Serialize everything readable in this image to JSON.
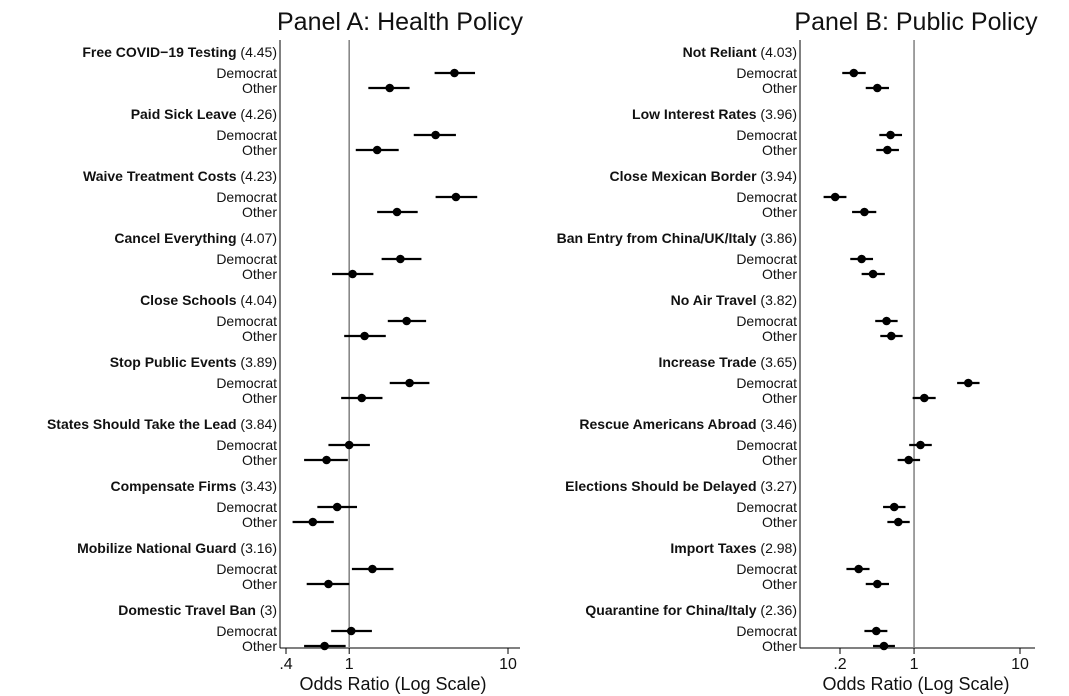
{
  "chart_data": [
    {
      "type": "forest",
      "title": "Panel A: Health Policy",
      "xlabel": "Odds Ratio (Log Scale)",
      "x_scale": "log",
      "x_ticks": [
        0.4,
        1,
        10
      ],
      "x_tick_labels": [
        ".4",
        "1",
        "10"
      ],
      "xlim": [
        0.37,
        12
      ],
      "reference_line": 1,
      "groups": [
        "Democrat",
        "Other"
      ],
      "items": [
        {
          "label": "Free COVID−19 Testing",
          "score": "(4.45)",
          "estimates": [
            {
              "group": "Democrat",
              "or": 4.6,
              "lo": 3.45,
              "hi": 6.2
            },
            {
              "group": "Other",
              "or": 1.8,
              "lo": 1.32,
              "hi": 2.4
            }
          ]
        },
        {
          "label": "Paid Sick Leave",
          "score": "(4.26)",
          "estimates": [
            {
              "group": "Democrat",
              "or": 3.5,
              "lo": 2.55,
              "hi": 4.7
            },
            {
              "group": "Other",
              "or": 1.5,
              "lo": 1.1,
              "hi": 2.05
            }
          ]
        },
        {
          "label": "Waive Treatment Costs",
          "score": "(4.23)",
          "estimates": [
            {
              "group": "Democrat",
              "or": 4.7,
              "lo": 3.5,
              "hi": 6.4
            },
            {
              "group": "Other",
              "or": 2.0,
              "lo": 1.5,
              "hi": 2.7
            }
          ]
        },
        {
          "label": "Cancel Everything",
          "score": "(4.07)",
          "estimates": [
            {
              "group": "Democrat",
              "or": 2.1,
              "lo": 1.6,
              "hi": 2.85
            },
            {
              "group": "Other",
              "or": 1.05,
              "lo": 0.78,
              "hi": 1.42
            }
          ]
        },
        {
          "label": "Close Schools",
          "score": " (4.04)",
          "estimates": [
            {
              "group": "Democrat",
              "or": 2.3,
              "lo": 1.75,
              "hi": 3.05
            },
            {
              "group": "Other",
              "or": 1.25,
              "lo": 0.93,
              "hi": 1.7
            }
          ]
        },
        {
          "label": "Stop Public Events",
          "score": "(3.89)",
          "estimates": [
            {
              "group": "Democrat",
              "or": 2.4,
              "lo": 1.8,
              "hi": 3.2
            },
            {
              "group": "Other",
              "or": 1.2,
              "lo": 0.89,
              "hi": 1.62
            }
          ]
        },
        {
          "label": "States Should Take the Lead",
          "score": "(3.84)",
          "estimates": [
            {
              "group": "Democrat",
              "or": 1.0,
              "lo": 0.74,
              "hi": 1.35
            },
            {
              "group": "Other",
              "or": 0.72,
              "lo": 0.52,
              "hi": 0.98
            }
          ]
        },
        {
          "label": "Compensate Firms",
          "score": "(3.43)",
          "estimates": [
            {
              "group": "Democrat",
              "or": 0.84,
              "lo": 0.63,
              "hi": 1.12
            },
            {
              "group": "Other",
              "or": 0.59,
              "lo": 0.44,
              "hi": 0.8
            }
          ]
        },
        {
          "label": "Mobilize National Guard",
          "score": "(3.16)",
          "estimates": [
            {
              "group": "Democrat",
              "or": 1.4,
              "lo": 1.04,
              "hi": 1.9
            },
            {
              "group": "Other",
              "or": 0.74,
              "lo": 0.54,
              "hi": 1.0
            }
          ]
        },
        {
          "label": "Domestic Travel Ban",
          "score": "(3)",
          "estimates": [
            {
              "group": "Democrat",
              "or": 1.03,
              "lo": 0.77,
              "hi": 1.39
            },
            {
              "group": "Other",
              "or": 0.7,
              "lo": 0.52,
              "hi": 0.95
            }
          ]
        }
      ]
    },
    {
      "type": "forest",
      "title": "Panel B: Public Policy",
      "xlabel": "Odds Ratio (Log Scale)",
      "x_scale": "log",
      "x_ticks": [
        0.2,
        1,
        10
      ],
      "x_tick_labels": [
        ".2",
        "1",
        "10"
      ],
      "xlim": [
        0.095,
        12
      ],
      "reference_line": 1,
      "groups": [
        "Democrat",
        "Other"
      ],
      "items": [
        {
          "label": "Not Reliant",
          "score": "(4.03)",
          "estimates": [
            {
              "group": "Democrat",
              "or": 0.27,
              "lo": 0.21,
              "hi": 0.35
            },
            {
              "group": "Other",
              "or": 0.45,
              "lo": 0.35,
              "hi": 0.58
            }
          ]
        },
        {
          "label": "Low Interest Rates",
          "score": "(3.96)",
          "estimates": [
            {
              "group": "Democrat",
              "or": 0.6,
              "lo": 0.47,
              "hi": 0.77
            },
            {
              "group": "Other",
              "or": 0.56,
              "lo": 0.44,
              "hi": 0.72
            }
          ]
        },
        {
          "label": "Close Mexican Border",
          "score": "(3.94)",
          "estimates": [
            {
              "group": "Democrat",
              "or": 0.18,
              "lo": 0.14,
              "hi": 0.23
            },
            {
              "group": "Other",
              "or": 0.34,
              "lo": 0.26,
              "hi": 0.44
            }
          ]
        },
        {
          "label": "Ban Entry from China/UK/Italy",
          "score": "(3.86)",
          "estimates": [
            {
              "group": "Democrat",
              "or": 0.32,
              "lo": 0.25,
              "hi": 0.41
            },
            {
              "group": "Other",
              "or": 0.41,
              "lo": 0.32,
              "hi": 0.53
            }
          ]
        },
        {
          "label": "No Air Travel",
          "score": "(3.82)",
          "estimates": [
            {
              "group": "Democrat",
              "or": 0.55,
              "lo": 0.43,
              "hi": 0.7
            },
            {
              "group": "Other",
              "or": 0.61,
              "lo": 0.48,
              "hi": 0.78
            }
          ]
        },
        {
          "label": "Increase Trade",
          "score": "(3.65)",
          "estimates": [
            {
              "group": "Democrat",
              "or": 3.25,
              "lo": 2.55,
              "hi": 4.15
            },
            {
              "group": "Other",
              "or": 1.25,
              "lo": 0.97,
              "hi": 1.6
            }
          ]
        },
        {
          "label": "Rescue Americans Abroad",
          "score": "(3.46)",
          "estimates": [
            {
              "group": "Democrat",
              "or": 1.15,
              "lo": 0.9,
              "hi": 1.47
            },
            {
              "group": "Other",
              "or": 0.89,
              "lo": 0.7,
              "hi": 1.14
            }
          ]
        },
        {
          "label": "Elections Should be Delayed",
          "score": "(3.27)",
          "estimates": [
            {
              "group": "Democrat",
              "or": 0.65,
              "lo": 0.51,
              "hi": 0.83
            },
            {
              "group": "Other",
              "or": 0.71,
              "lo": 0.56,
              "hi": 0.91
            }
          ]
        },
        {
          "label": "Import Taxes",
          "score": "(2.98)",
          "estimates": [
            {
              "group": "Democrat",
              "or": 0.3,
              "lo": 0.23,
              "hi": 0.38
            },
            {
              "group": "Other",
              "or": 0.45,
              "lo": 0.35,
              "hi": 0.58
            }
          ]
        },
        {
          "label": "Quarantine for China/Italy",
          "score": "(2.36)",
          "estimates": [
            {
              "group": "Democrat",
              "or": 0.44,
              "lo": 0.34,
              "hi": 0.56
            },
            {
              "group": "Other",
              "or": 0.52,
              "lo": 0.41,
              "hi": 0.66
            }
          ]
        }
      ]
    }
  ]
}
